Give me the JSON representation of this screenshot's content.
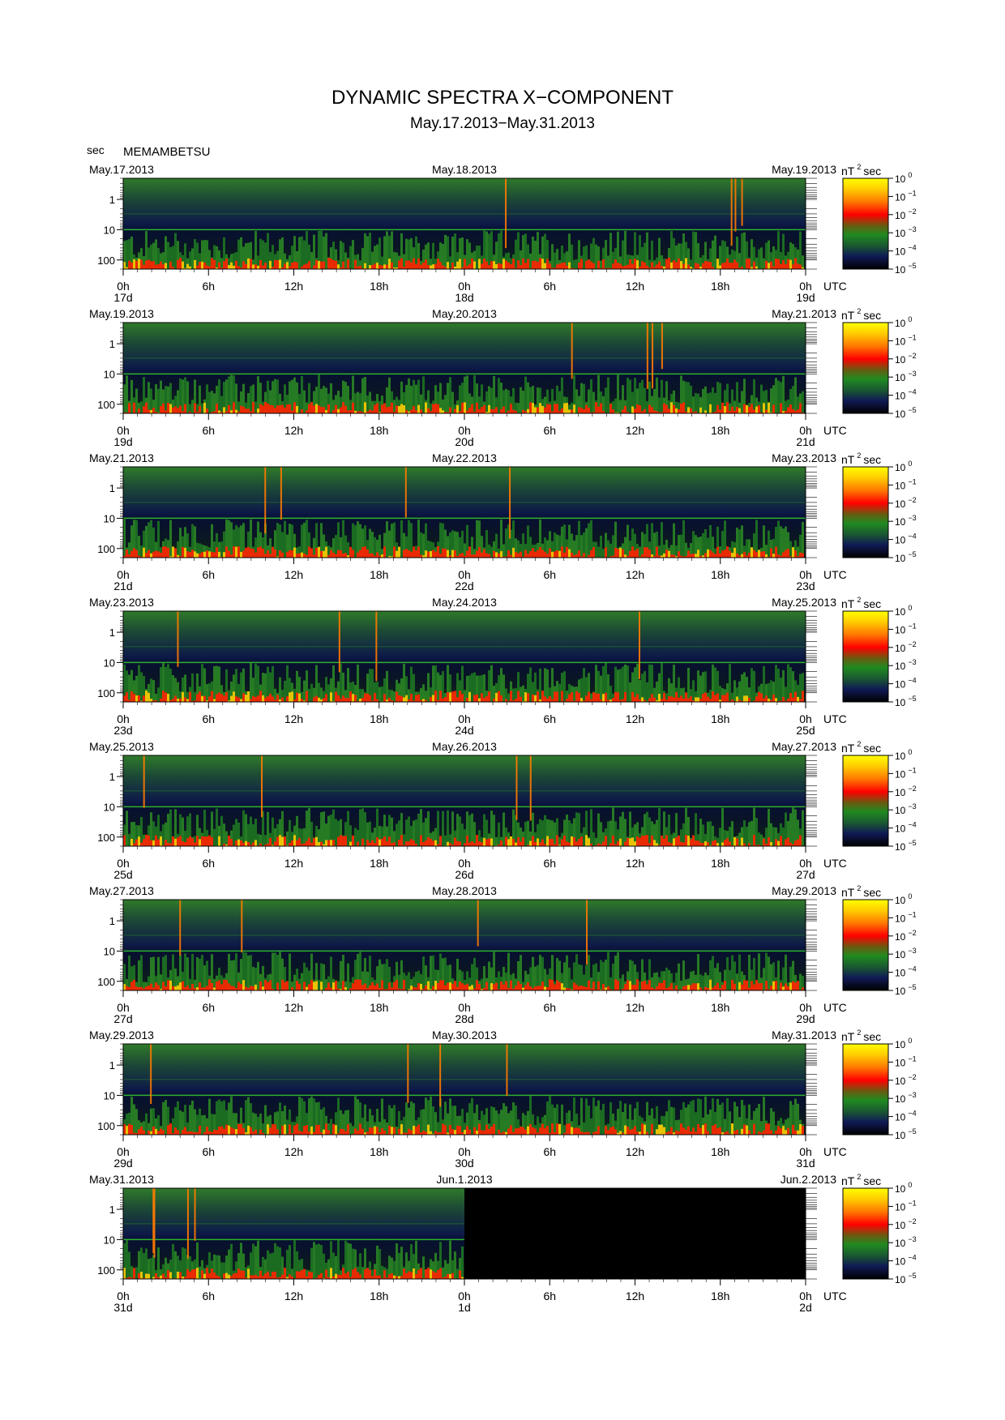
{
  "header": {
    "title": "DYNAMIC SPECTRA X−COMPONENT",
    "subtitle": "May.17.2013−May.31.2013",
    "sec_label": "sec",
    "station": "MEMAMBETSU"
  },
  "chart_data": {
    "type": "heatmap",
    "title": "DYNAMIC SPECTRA X−COMPONENT",
    "subtitle": "May.17.2013−May.31.2013",
    "station": "MEMAMBETSU",
    "ylabel": "sec",
    "yscale": "log",
    "yticks": [
      {
        "value": 1,
        "label": "1"
      },
      {
        "value": 10,
        "label": "10"
      },
      {
        "value": 100,
        "label": "100"
      }
    ],
    "ylim_sec": [
      0.2,
      200
    ],
    "xticks_hours": [
      "0h",
      "6h",
      "12h",
      "18h",
      "0h",
      "6h",
      "12h",
      "18h",
      "0h"
    ],
    "xunit": "UTC",
    "colorbar": {
      "unit_base": "nT",
      "unit_exp": "2",
      "unit_tail": "sec",
      "scale": "log",
      "range": [
        1e-05,
        1
      ],
      "ticks": [
        {
          "base": "10",
          "exp": "0"
        },
        {
          "base": "10",
          "exp": "−1"
        },
        {
          "base": "10",
          "exp": "−2"
        },
        {
          "base": "10",
          "exp": "−3"
        },
        {
          "base": "10",
          "exp": "−4"
        },
        {
          "base": "10",
          "exp": "−5"
        }
      ],
      "colors": [
        "#ffff00",
        "#ff9900",
        "#ff0000",
        "#208a20",
        "#101a55",
        "#000000"
      ]
    },
    "panels": [
      {
        "dates": [
          "May.17.2013",
          "May.18.2013",
          "May.19.2013"
        ],
        "day_labels": [
          "17d",
          "18d",
          "19d"
        ],
        "data_end": 1.0
      },
      {
        "dates": [
          "May.19.2013",
          "May.20.2013",
          "May.21.2013"
        ],
        "day_labels": [
          "19d",
          "20d",
          "21d"
        ],
        "data_end": 1.0
      },
      {
        "dates": [
          "May.21.2013",
          "May.22.2013",
          "May.23.2013"
        ],
        "day_labels": [
          "21d",
          "22d",
          "23d"
        ],
        "data_end": 1.0
      },
      {
        "dates": [
          "May.23.2013",
          "May.24.2013",
          "May.25.2013"
        ],
        "day_labels": [
          "23d",
          "24d",
          "25d"
        ],
        "data_end": 1.0
      },
      {
        "dates": [
          "May.25.2013",
          "May.26.2013",
          "May.27.2013"
        ],
        "day_labels": [
          "25d",
          "26d",
          "27d"
        ],
        "data_end": 1.0
      },
      {
        "dates": [
          "May.27.2013",
          "May.28.2013",
          "May.29.2013"
        ],
        "day_labels": [
          "27d",
          "28d",
          "29d"
        ],
        "data_end": 1.0
      },
      {
        "dates": [
          "May.29.2013",
          "May.30.2013",
          "May.31.2013"
        ],
        "day_labels": [
          "29d",
          "30d",
          "31d"
        ],
        "data_end": 1.0
      },
      {
        "dates": [
          "May.31.2013",
          "Jun.1.2013",
          "Jun.2.2013"
        ],
        "day_labels": [
          "31d",
          "1d",
          "2d"
        ],
        "data_end": 0.5
      }
    ]
  }
}
